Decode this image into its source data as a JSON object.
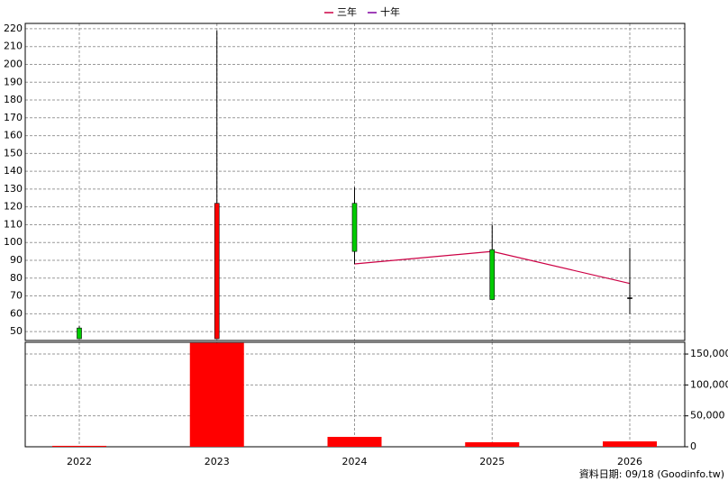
{
  "chart_data": {
    "type": "candlestick",
    "categories": [
      "2022",
      "2023",
      "2024",
      "2025",
      "2026"
    ],
    "open": [
      52,
      46,
      122,
      96,
      69
    ],
    "high": [
      53,
      219,
      131,
      110,
      97
    ],
    "low": [
      46,
      46,
      88,
      68,
      60
    ],
    "close": [
      46,
      122,
      95,
      68,
      69
    ],
    "up_color": "#ff0000",
    "down_color": "#00cc00",
    "ylim": [
      45,
      223
    ],
    "yticks": [
      50,
      60,
      70,
      80,
      90,
      100,
      110,
      120,
      130,
      140,
      150,
      160,
      170,
      180,
      190,
      200,
      210,
      220
    ],
    "lines": [
      {
        "name": "三年",
        "color": "#cc0044",
        "values": [
          null,
          null,
          88,
          95,
          77
        ]
      },
      {
        "name": "十年",
        "color": "#8000a0",
        "values": [
          null,
          null,
          null,
          null,
          null
        ]
      }
    ],
    "volume": {
      "values": [
        1500,
        168000,
        16000,
        7300,
        8700
      ],
      "color": "#ff0000",
      "ylim": [
        0,
        169000
      ],
      "yticks": [
        0,
        {
          "value": 50000,
          "label": "50,000"
        },
        {
          "value": 100000,
          "label": "100,000"
        },
        {
          "value": 150000,
          "label": "150,000"
        }
      ]
    },
    "grid": true,
    "footer": "資料日期: 09/18  (Goodinfo.tw)"
  }
}
